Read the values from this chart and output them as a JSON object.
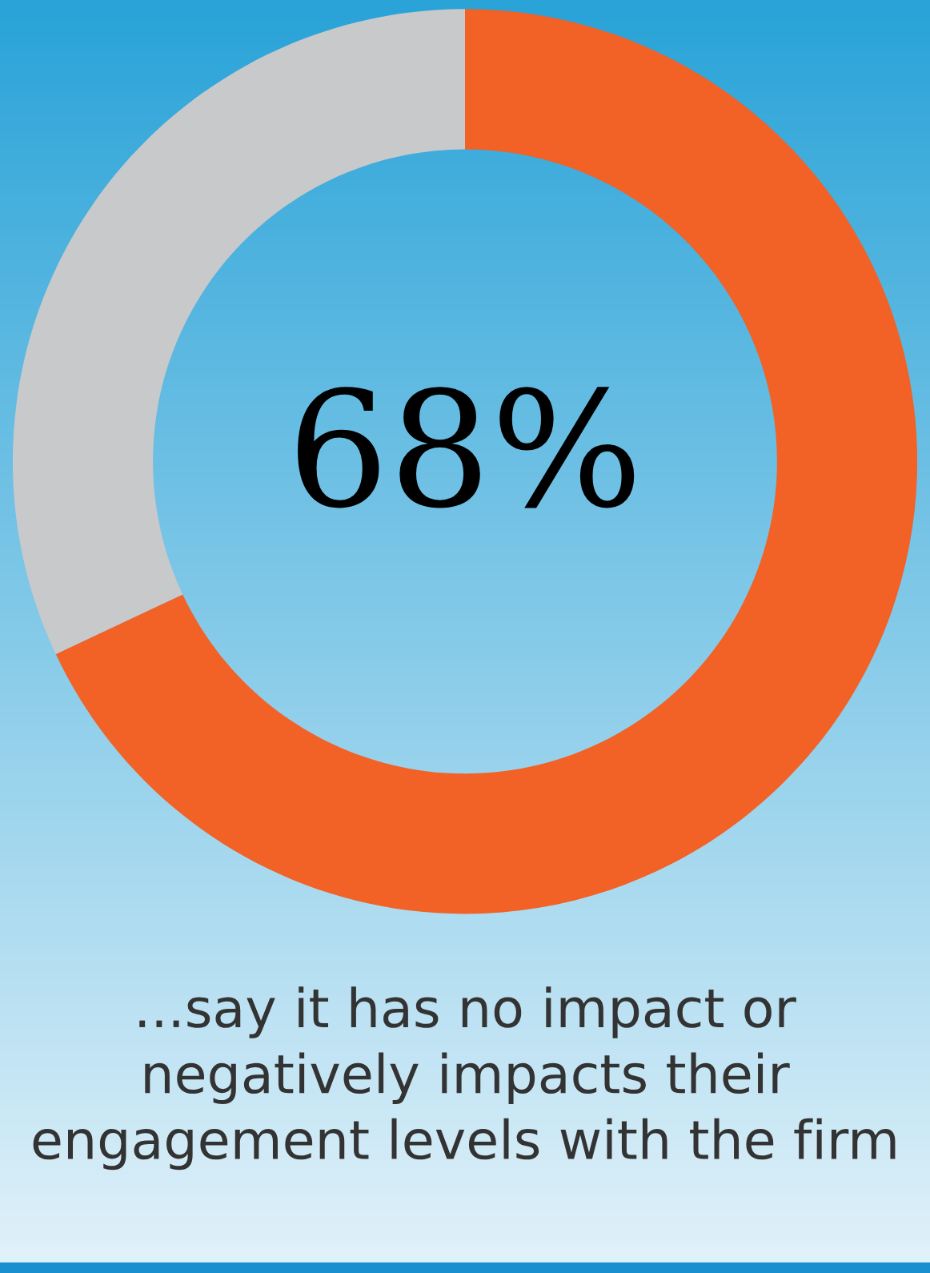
{
  "chart_data": {
    "type": "donut",
    "categories": [
      null,
      null
    ],
    "values": [
      68,
      32
    ],
    "colors": [
      "#f26125",
      "#c8c9cb"
    ],
    "value_labels": [
      "68%",
      null
    ],
    "annotations": [
      "...say it has no impact or negatively impacts their engagement levels with the firm"
    ]
  }
}
